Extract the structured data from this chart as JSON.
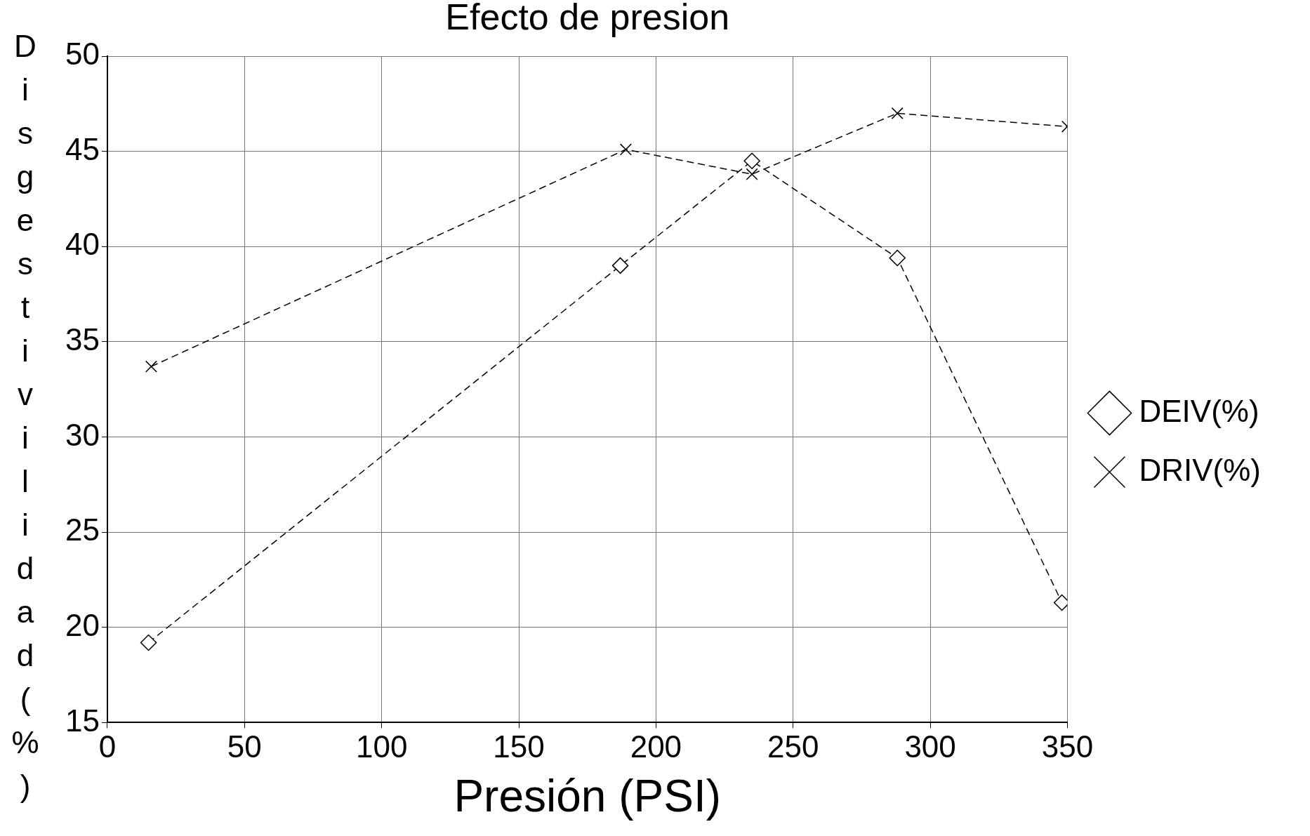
{
  "chart_data": {
    "type": "line",
    "title": "Efecto de presion",
    "xlabel": "Presión (PSI)",
    "ylabel": "Disgestivilidad(%)",
    "xlim": [
      0,
      350
    ],
    "xticks": [
      0,
      50,
      100,
      150,
      200,
      250,
      300,
      350
    ],
    "ylim": [
      15,
      50
    ],
    "yticks": [
      15,
      20,
      25,
      30,
      35,
      40,
      45,
      50
    ],
    "grid": true,
    "legend": "right",
    "line_style": "dashed",
    "series": [
      {
        "name": "DEIV(%)",
        "color": "#000000",
        "marker": "diamond",
        "x": [
          15,
          187,
          235,
          288,
          348
        ],
        "values": [
          19.2,
          39,
          44.5,
          39.4,
          21.3
        ]
      },
      {
        "name": "DRIV(%)",
        "color": "#000000",
        "marker": "cross",
        "x": [
          16,
          189,
          235,
          288,
          350
        ],
        "values": [
          33.7,
          45.1,
          43.8,
          47,
          46.3
        ]
      }
    ]
  }
}
